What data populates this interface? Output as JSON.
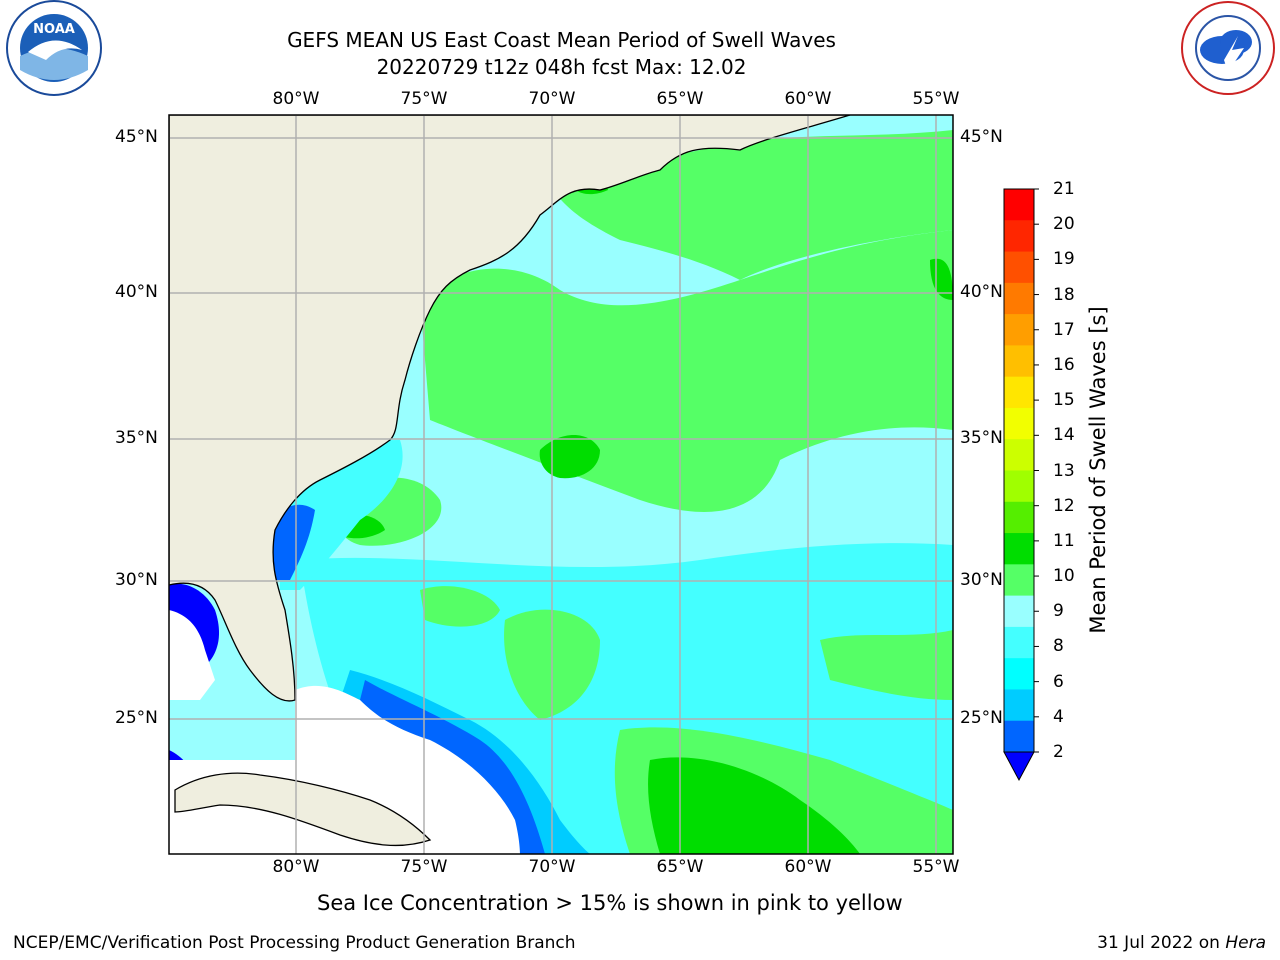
{
  "header": {
    "title_line1": "GEFS MEAN US East Coast Mean Period of Swell Waves",
    "title_line2": "20220729 t12z 048h fcst   Max: 12.02"
  },
  "logos": {
    "left_text": "NOAA",
    "left_ring": "NATIONAL OCEANIC AND ATMOSPHERIC ADMINISTRATION · U.S. DEPARTMENT OF COMMERCE",
    "right_ring": "NATIONAL WEATHER SERVICE"
  },
  "axes": {
    "lon_ticks": [
      "80°W",
      "75°W",
      "70°W",
      "65°W",
      "60°W",
      "55°W"
    ],
    "lat_ticks": [
      "45°N",
      "40°N",
      "35°N",
      "30°N",
      "25°N"
    ]
  },
  "colorbar": {
    "label": "Mean Period of Swell Waves [s]",
    "ticks": [
      "21",
      "20",
      "19",
      "18",
      "17",
      "16",
      "15",
      "14",
      "13",
      "12",
      "11",
      "10",
      "9",
      "8",
      "6",
      "4",
      "2"
    ],
    "colors": [
      "#ff0000",
      "#ff2600",
      "#ff5000",
      "#ff7a00",
      "#ff9e00",
      "#ffbf00",
      "#ffe600",
      "#f2ff00",
      "#ccff00",
      "#a0ff00",
      "#55ee00",
      "#00dd00",
      "#55ff66",
      "#99ffff",
      "#44ffff",
      "#00ffff",
      "#00ccff",
      "#0066ff"
    ],
    "extend_color": "#0000ff"
  },
  "note": "Sea Ice Concentration > 15% is shown in pink to yellow",
  "footer": {
    "left": "NCEP/EMC/Verification Post Processing Product Generation Branch",
    "date": "31 Jul 2022 on ",
    "host": "Hera"
  }
}
